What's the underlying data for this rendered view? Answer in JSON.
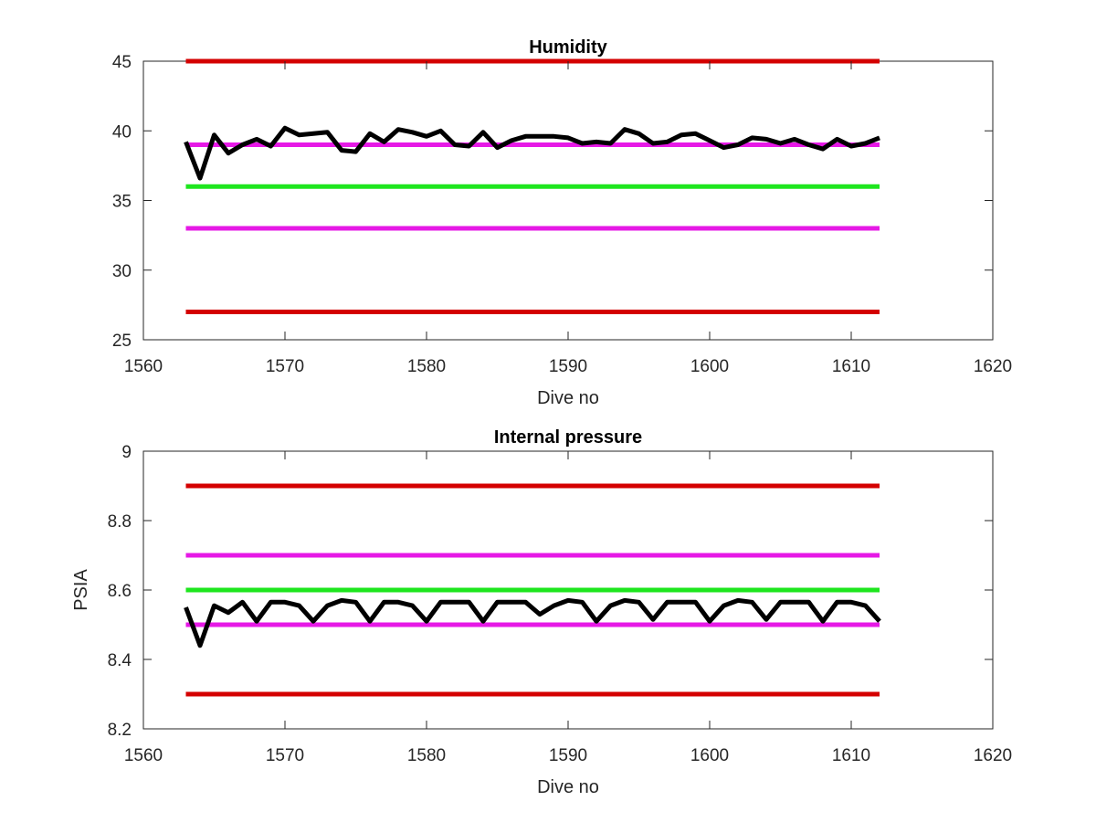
{
  "chart_data": [
    {
      "type": "line",
      "title": "Humidity",
      "xlabel": "Dive no",
      "ylabel": "",
      "xlim": [
        1560,
        1620
      ],
      "ylim": [
        25,
        45
      ],
      "x_ticks": [
        "1560",
        "1570",
        "1580",
        "1590",
        "1600",
        "1610",
        "1620"
      ],
      "y_ticks": [
        "25",
        "30",
        "35",
        "40",
        "45"
      ],
      "grid": false,
      "series": [
        {
          "value": 45,
          "x_range": [
            1563,
            1612
          ],
          "color": "#d40000"
        },
        {
          "value": 39,
          "x_range": [
            1563,
            1612
          ],
          "color": "#e619e6"
        },
        {
          "value": 36,
          "x_range": [
            1563,
            1612
          ],
          "color": "#1ee61e"
        },
        {
          "value": 33,
          "x_range": [
            1563,
            1612
          ],
          "color": "#e619e6"
        },
        {
          "value": 27,
          "x_range": [
            1563,
            1612
          ],
          "color": "#d40000"
        },
        {
          "color": "#000000",
          "x": [
            1563,
            1564,
            1565,
            1566,
            1567,
            1568,
            1569,
            1570,
            1571,
            1572,
            1573,
            1574,
            1575,
            1576,
            1577,
            1578,
            1579,
            1580,
            1581,
            1582,
            1583,
            1584,
            1585,
            1586,
            1587,
            1588,
            1589,
            1590,
            1591,
            1592,
            1593,
            1594,
            1595,
            1596,
            1597,
            1598,
            1599,
            1600,
            1601,
            1602,
            1603,
            1604,
            1605,
            1606,
            1607,
            1608,
            1609,
            1610,
            1611,
            1612
          ],
          "values": [
            39.2,
            36.6,
            39.7,
            38.4,
            39.0,
            39.4,
            38.9,
            40.2,
            39.7,
            39.8,
            39.9,
            38.6,
            38.5,
            39.8,
            39.2,
            40.1,
            39.9,
            39.6,
            40.0,
            39.0,
            38.9,
            39.9,
            38.8,
            39.3,
            39.6,
            39.6,
            39.6,
            39.5,
            39.1,
            39.2,
            39.1,
            40.1,
            39.8,
            39.1,
            39.2,
            39.7,
            39.8,
            39.3,
            38.8,
            39.0,
            39.5,
            39.4,
            39.1,
            39.4,
            39.0,
            38.7,
            39.4,
            38.9,
            39.1,
            39.5
          ]
        }
      ]
    },
    {
      "type": "line",
      "title": "Internal pressure",
      "xlabel": "Dive no",
      "ylabel": "PSIA",
      "xlim": [
        1560,
        1620
      ],
      "ylim": [
        8.2,
        9
      ],
      "x_ticks": [
        "1560",
        "1570",
        "1580",
        "1590",
        "1600",
        "1610",
        "1620"
      ],
      "y_ticks": [
        "8.2",
        "8.4",
        "8.6",
        "8.8",
        "9"
      ],
      "grid": false,
      "series": [
        {
          "value": 8.9,
          "x_range": [
            1563,
            1612
          ],
          "color": "#d40000"
        },
        {
          "value": 8.7,
          "x_range": [
            1563,
            1612
          ],
          "color": "#e619e6"
        },
        {
          "value": 8.6,
          "x_range": [
            1563,
            1612
          ],
          "color": "#1ee61e"
        },
        {
          "value": 8.5,
          "x_range": [
            1563,
            1612
          ],
          "color": "#e619e6"
        },
        {
          "value": 8.3,
          "x_range": [
            1563,
            1612
          ],
          "color": "#d40000"
        },
        {
          "color": "#000000",
          "x": [
            1563,
            1564,
            1565,
            1566,
            1567,
            1568,
            1569,
            1570,
            1571,
            1572,
            1573,
            1574,
            1575,
            1576,
            1577,
            1578,
            1579,
            1580,
            1581,
            1582,
            1583,
            1584,
            1585,
            1586,
            1587,
            1588,
            1589,
            1590,
            1591,
            1592,
            1593,
            1594,
            1595,
            1596,
            1597,
            1598,
            1599,
            1600,
            1601,
            1602,
            1603,
            1604,
            1605,
            1606,
            1607,
            1608,
            1609,
            1610,
            1611,
            1612
          ],
          "values": [
            8.55,
            8.44,
            8.555,
            8.535,
            8.565,
            8.51,
            8.565,
            8.565,
            8.555,
            8.51,
            8.555,
            8.57,
            8.565,
            8.51,
            8.565,
            8.565,
            8.555,
            8.51,
            8.565,
            8.565,
            8.565,
            8.51,
            8.565,
            8.565,
            8.565,
            8.53,
            8.555,
            8.57,
            8.565,
            8.51,
            8.555,
            8.57,
            8.565,
            8.515,
            8.565,
            8.565,
            8.565,
            8.51,
            8.555,
            8.57,
            8.565,
            8.515,
            8.565,
            8.565,
            8.565,
            8.51,
            8.565,
            8.565,
            8.555,
            8.51
          ]
        }
      ]
    }
  ]
}
